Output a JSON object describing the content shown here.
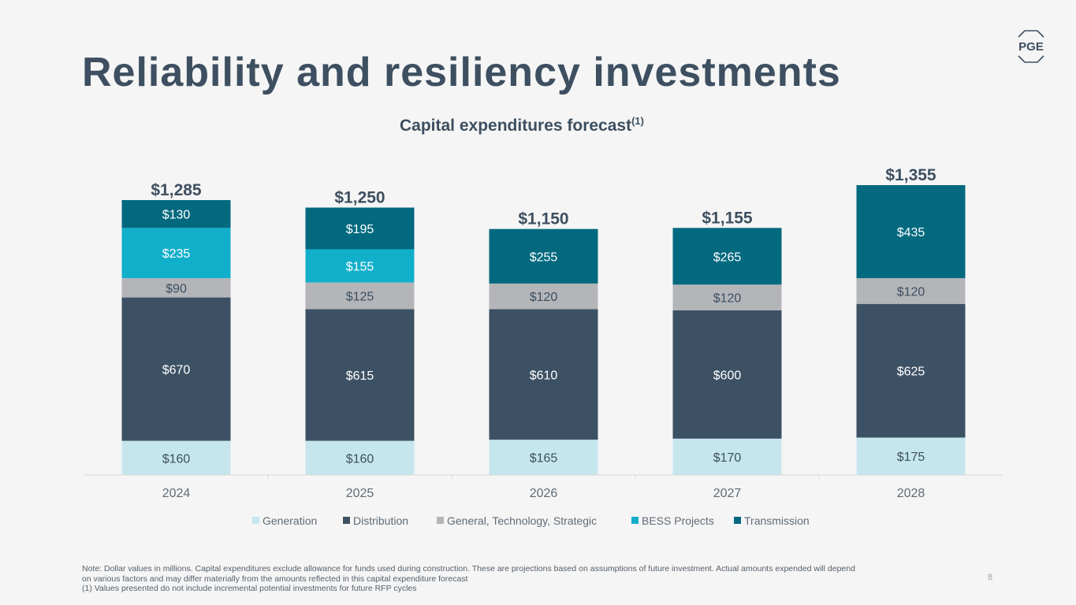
{
  "slide": {
    "title": "Reliability and resiliency investments",
    "page_number": "8",
    "logo_text": "PGE",
    "footnote_lines": [
      "Note: Dollar values in millions. Capital expenditures exclude allowance for funds used during construction. These are projections based on assumptions of future investment. Actual amounts expended will depend",
      "on various factors and may differ materially from the amounts reflected in this capital expenditure forecast",
      "(1) Values presented do not include incremental potential investments for future RFP cycles"
    ]
  },
  "chart_data": {
    "type": "bar",
    "stacked": true,
    "title": "Capital expenditures forecast",
    "title_superscript": "(1)",
    "categories": [
      "2024",
      "2025",
      "2026",
      "2027",
      "2028"
    ],
    "totals": [
      "$1,285",
      "$1,250",
      "$1,150",
      "$1,155",
      "$1,355"
    ],
    "series": [
      {
        "name": "Generation",
        "color": "#c6e6ee",
        "values": [
          160,
          160,
          165,
          170,
          175
        ]
      },
      {
        "name": "Distribution",
        "color": "#3d5164",
        "values": [
          670,
          615,
          610,
          600,
          625
        ]
      },
      {
        "name": "General, Technology, Strategic",
        "color": "#b3b5b9",
        "values": [
          90,
          125,
          120,
          120,
          120
        ]
      },
      {
        "name": "BESS Projects",
        "color": "#12afcb",
        "values": [
          235,
          155,
          0,
          0,
          0
        ]
      },
      {
        "name": "Transmission",
        "color": "#03697f",
        "values": [
          130,
          195,
          255,
          265,
          435
        ]
      }
    ],
    "ylim": [
      0,
      1355
    ],
    "legend": "bottom",
    "value_prefix": "$"
  }
}
